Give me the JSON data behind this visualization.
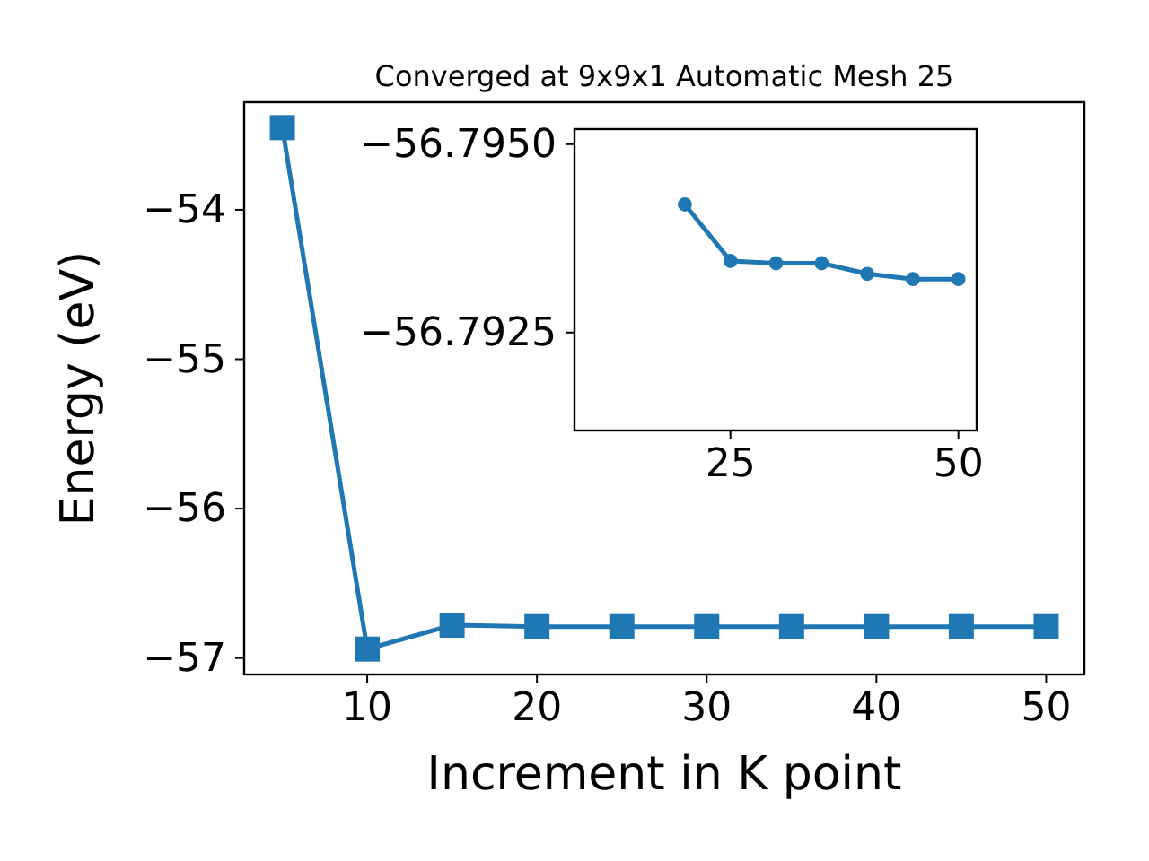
{
  "chart_data": [
    {
      "type": "line",
      "title": "Converged at 9x9x1 Automatic Mesh 25",
      "xlabel": "Increment in K point",
      "ylabel": "Energy (eV)",
      "marker": "square",
      "grid": false,
      "x": [
        5,
        10,
        15,
        20,
        25,
        30,
        35,
        40,
        45,
        50
      ],
      "series": [
        {
          "color": "#1f77b4",
          "values": [
            -53.45,
            -56.94,
            -56.78,
            -56.79,
            -56.79,
            -56.79,
            -56.79,
            -56.79,
            -56.79,
            -56.79
          ]
        }
      ],
      "xlim": [
        2.75,
        52.25
      ],
      "xticks": [
        10,
        20,
        30,
        40,
        50
      ],
      "ylim": [
        -57.11,
        -53.28
      ],
      "yticks": [
        {
          "value": -57,
          "label": "−57"
        },
        {
          "value": -56,
          "label": "−56"
        },
        {
          "value": -55,
          "label": "−55"
        },
        {
          "value": -54,
          "label": "−54"
        }
      ]
    },
    {
      "type": "line",
      "marker": "circle",
      "grid": false,
      "x": [
        20,
        25,
        30,
        35,
        40,
        45,
        50
      ],
      "series": [
        {
          "color": "#1f77b4",
          "values": [
            -56.7942,
            -56.79345,
            -56.79342,
            -56.79342,
            -56.79328,
            -56.79321,
            -56.79321
          ]
        }
      ],
      "xlim": [
        7.9,
        52
      ],
      "xticks": [
        25,
        50
      ],
      "ylim": [
        -56.7912,
        -56.7952
      ],
      "yticks": [
        {
          "value": -56.795,
          "label": "−56.7950"
        },
        {
          "value": -56.7925,
          "label": "−56.7925"
        }
      ]
    }
  ]
}
